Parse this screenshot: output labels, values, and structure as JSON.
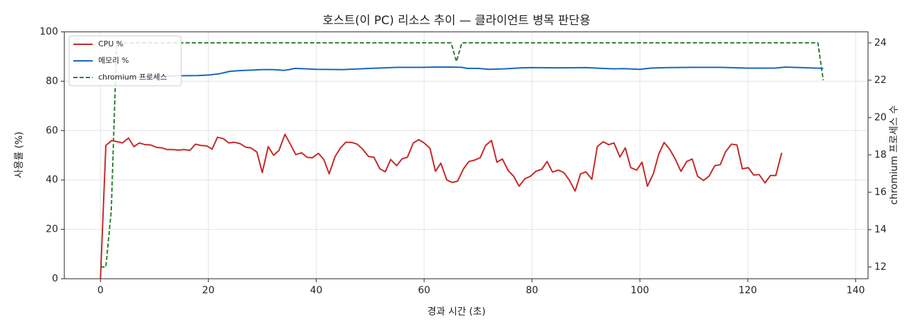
{
  "chart_data": {
    "type": "line",
    "title": "호스트(이 PC) 리소스 추이 — 클라이언트 병목 판단용",
    "xlabel": "경과 시간 (초)",
    "ylabel": "사용률 (%)",
    "y2label": "chromium 프로세스 수",
    "xlim": [
      -6.7,
      142.3
    ],
    "xticks": [
      0,
      20,
      40,
      60,
      80,
      100,
      120,
      140
    ],
    "ylim": [
      0,
      100
    ],
    "yticks": [
      0,
      20,
      40,
      60,
      80,
      100
    ],
    "y2lim": [
      11.37,
      24.59
    ],
    "y2ticks": [
      12,
      14,
      16,
      18,
      20,
      22,
      24
    ],
    "grid": true,
    "legend": "upper left",
    "series": [
      {
        "name": "CPU %",
        "color": "#c62828",
        "linestyle": "solid",
        "x": [
          0,
          1.0,
          2.1,
          3.1,
          4.1,
          5.2,
          6.2,
          7.2,
          8.3,
          9.3,
          10.4,
          11.4,
          12.4,
          13.5,
          14.5,
          15.5,
          16.6,
          17.6,
          18.6,
          19.7,
          20.7,
          21.7,
          22.8,
          23.8,
          24.8,
          25.9,
          26.9,
          27.9,
          29.0,
          30.0,
          31.1,
          32.1,
          33.1,
          34.2,
          35.2,
          36.2,
          37.3,
          38.3,
          39.3,
          40.4,
          41.4,
          42.4,
          43.5,
          44.5,
          45.5,
          46.6,
          47.6,
          48.6,
          49.7,
          50.7,
          51.8,
          52.8,
          53.8,
          54.9,
          55.9,
          56.9,
          58.0,
          59.0,
          60.0,
          61.1,
          62.1,
          63.1,
          64.2,
          65.2,
          66.2,
          67.3,
          68.3,
          69.3,
          70.4,
          71.4,
          72.5,
          73.5,
          74.5,
          75.6,
          76.6,
          77.6,
          78.7,
          79.7,
          80.7,
          81.8,
          82.8,
          83.8,
          84.9,
          85.9,
          86.9,
          88.0,
          89.0,
          90.0,
          91.1,
          92.1,
          93.2,
          94.2,
          95.2,
          96.3,
          97.3,
          98.3,
          99.4,
          100.4,
          101.4,
          102.5,
          103.5,
          104.5,
          105.6,
          106.6,
          107.6,
          108.7,
          109.7,
          110.7,
          111.8,
          112.8,
          113.9,
          114.9,
          115.9,
          117.0,
          118.0,
          119.0,
          120.1,
          121.1,
          122.1,
          123.2,
          124.2,
          125.2,
          126.3
        ],
        "values": [
          0,
          54,
          56,
          55.5,
          55,
          57,
          53.5,
          55,
          54.3,
          54.2,
          53.2,
          53,
          52.3,
          52.3,
          52.1,
          52.3,
          52,
          54.5,
          54,
          53.8,
          52.5,
          57.3,
          56.7,
          55,
          55.3,
          54.7,
          53.3,
          53,
          51.3,
          43,
          53.5,
          50,
          52,
          58.5,
          54.5,
          50.3,
          51,
          49.2,
          49,
          50.8,
          48.3,
          42.5,
          49.5,
          53,
          55.3,
          55.2,
          54.5,
          52.5,
          49.5,
          49.2,
          44.5,
          43.3,
          48.3,
          45.8,
          48.5,
          49.2,
          55,
          56.3,
          55,
          52.8,
          43.5,
          46.8,
          40,
          39,
          39.5,
          44.5,
          47.5,
          48,
          49,
          54,
          56,
          47.2,
          48.5,
          43.8,
          41.5,
          37.5,
          40.5,
          41.5,
          43.5,
          44.3,
          47.5,
          43.2,
          44,
          43,
          40,
          35.5,
          42.5,
          43.3,
          40.3,
          53.5,
          55.5,
          54.3,
          55,
          49.3,
          53,
          45,
          44,
          47.2,
          37.5,
          42.5,
          50.5,
          55.2,
          52.2,
          48.3,
          43.5,
          47.5,
          48.5,
          41.5,
          39.8,
          41.5,
          45.8,
          46.2,
          51.5,
          54.5,
          54.2,
          44.5,
          45,
          42,
          42.2,
          38.8,
          41.8,
          41.8,
          51
        ]
      },
      {
        "name": "메모리 %",
        "color": "#1565c0",
        "linestyle": "solid",
        "x": [
          0,
          5,
          10,
          15,
          18,
          20,
          22,
          24,
          26,
          28,
          30,
          32,
          34,
          35,
          36,
          38,
          40,
          45,
          50,
          55,
          60,
          62,
          65,
          67,
          68,
          70,
          72,
          75,
          78,
          80,
          85,
          90,
          93,
          95,
          97,
          100,
          102,
          105,
          110,
          115,
          120,
          125,
          127,
          130,
          134
        ],
        "values": [
          81,
          81.5,
          82,
          82.2,
          82.3,
          82.5,
          83,
          84,
          84.3,
          84.5,
          84.7,
          84.7,
          84.4,
          84.7,
          85.2,
          85,
          84.8,
          84.7,
          85.2,
          85.6,
          85.6,
          85.7,
          85.7,
          85.6,
          85.2,
          85.2,
          84.8,
          85,
          85.4,
          85.5,
          85.4,
          85.5,
          85.2,
          85,
          85.1,
          84.8,
          85.3,
          85.5,
          85.6,
          85.6,
          85.3,
          85.3,
          85.7,
          85.5,
          85.2
        ]
      },
      {
        "name": "chromium 프로세스",
        "color": "#2e7d32",
        "linestyle": "dashed",
        "axis": "y2",
        "x": [
          0,
          1,
          2,
          3,
          4,
          65,
          66,
          67,
          133,
          134
        ],
        "values": [
          12,
          12,
          15,
          24,
          24,
          24,
          23,
          24,
          24,
          22
        ]
      }
    ]
  }
}
